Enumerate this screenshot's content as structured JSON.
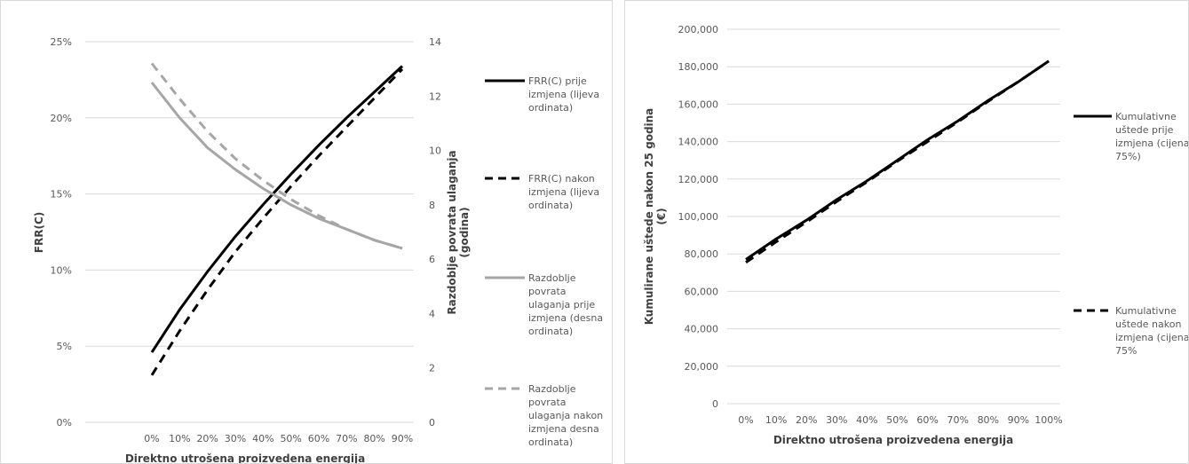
{
  "chart_data": [
    {
      "type": "line",
      "x": [
        "0%",
        "10%",
        "20%",
        "30%",
        "40%",
        "50%",
        "60%",
        "70%",
        "80%",
        "90%"
      ],
      "xlabel": "Direktno utrošena proizvedena energija",
      "ylabel": "FRR(C)",
      "ylabel2": [
        "Razdoblje povrata ulaganja",
        "(godina)"
      ],
      "ylim": [
        0,
        0.25
      ],
      "yticks": [
        "0%",
        "5%",
        "10%",
        "15%",
        "20%",
        "25%"
      ],
      "ylim2": [
        0,
        14
      ],
      "yticks2": [
        "0",
        "2",
        "4",
        "6",
        "8",
        "10",
        "12",
        "14"
      ],
      "grid": true,
      "legend_position": "right",
      "series": [
        {
          "name": [
            "FRR(C) prije",
            "izmjena (lijeva",
            "ordinata)"
          ],
          "axis": "left",
          "color": "#000000",
          "dash": false,
          "values": [
            0.046,
            0.074,
            0.099,
            0.122,
            0.143,
            0.163,
            0.182,
            0.2,
            0.217,
            0.234
          ]
        },
        {
          "name": [
            "FRR(C) nakon",
            "izmjena (lijeva",
            "ordinata)"
          ],
          "axis": "left",
          "color": "#000000",
          "dash": true,
          "values": [
            0.031,
            0.06,
            0.087,
            0.112,
            0.134,
            0.155,
            0.175,
            0.194,
            0.213,
            0.232
          ]
        },
        {
          "name": [
            "Razdoblje",
            "povrata",
            "ulaganja prije",
            "izmjena (desna",
            "ordinata)"
          ],
          "axis": "right",
          "color": "#a6a6a6",
          "dash": false,
          "values": [
            12.5,
            11.2,
            10.1,
            9.3,
            8.6,
            8.0,
            7.5,
            7.1,
            6.7,
            6.4
          ]
        },
        {
          "name": [
            "Razdoblje",
            "povrata",
            "ulaganja nakon",
            "izmjena desna",
            "ordinata)"
          ],
          "axis": "right",
          "color": "#a6a6a6",
          "dash": true,
          "values": [
            13.2,
            11.9,
            10.7,
            9.7,
            8.9,
            8.2,
            7.6,
            7.1,
            6.7,
            6.4
          ]
        }
      ]
    },
    {
      "type": "line",
      "x": [
        "0%",
        "10%",
        "20%",
        "30%",
        "40%",
        "50%",
        "60%",
        "70%",
        "80%",
        "90%",
        "100%"
      ],
      "xlabel": "Direktno utrošena proizvedena energija",
      "ylabel": [
        "Kumulirane uštede nakon 25 godina",
        "(€)"
      ],
      "ylim": [
        0,
        200000
      ],
      "yticks": [
        "0",
        "20,000",
        "40,000",
        "60,000",
        "80,000",
        "100,000",
        "120,000",
        "140,000",
        "160,000",
        "180,000",
        "200,000"
      ],
      "grid": true,
      "legend_position": "right",
      "series": [
        {
          "name": [
            "Kumulativne",
            "uštede prije",
            "izmjena (cijena",
            "75%)"
          ],
          "color": "#000000",
          "dash": false,
          "values": [
            77000,
            88000,
            98000,
            109000,
            119000,
            130000,
            141000,
            151000,
            162000,
            172000,
            183000
          ]
        },
        {
          "name": [
            "Kumulativne",
            "uštede nakon",
            "izmjena (cijena",
            "75%"
          ],
          "color": "#000000",
          "dash": true,
          "values": [
            75500,
            86500,
            97000,
            108000,
            118500,
            129500,
            140000,
            150500,
            161500,
            172000,
            183000
          ]
        }
      ]
    }
  ]
}
